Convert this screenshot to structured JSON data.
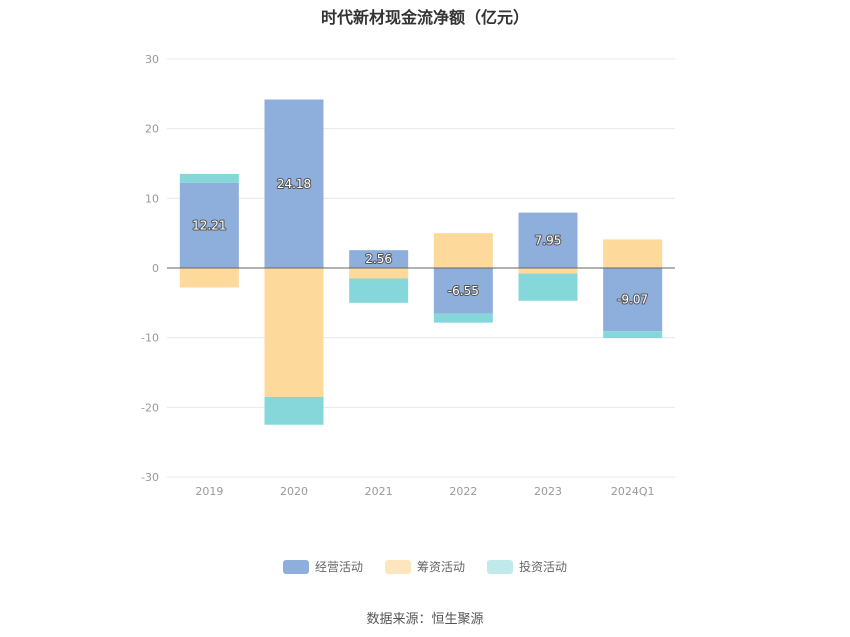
{
  "chart_data": {
    "type": "bar",
    "stacked": true,
    "title": "时代新材现金流净额（亿元）",
    "categories": [
      "2019",
      "2020",
      "2021",
      "2022",
      "2023",
      "2024Q1"
    ],
    "ylim": [
      -30,
      30
    ],
    "yticks": [
      30,
      20,
      10,
      0,
      -10,
      -20,
      -30
    ],
    "grid": true,
    "legend_position": "bottom",
    "series": [
      {
        "name": "经营活动",
        "color": "#8eaedc",
        "values": [
          12.21,
          24.18,
          2.56,
          -6.55,
          7.95,
          -9.07
        ],
        "labels": [
          "12.21",
          "24.18",
          "2.56",
          "-6.55",
          "7.95",
          "-9.07"
        ]
      },
      {
        "name": "筹资活动",
        "color": "#fdd99b",
        "values": [
          -2.8,
          -18.5,
          -1.5,
          5.0,
          -0.8,
          4.1
        ]
      },
      {
        "name": "投资活动",
        "color": "#85d7d9",
        "values": [
          1.3,
          -4.0,
          -3.5,
          -1.3,
          -3.9,
          -1.0
        ]
      }
    ],
    "source": "数据来源：恒生聚源"
  }
}
